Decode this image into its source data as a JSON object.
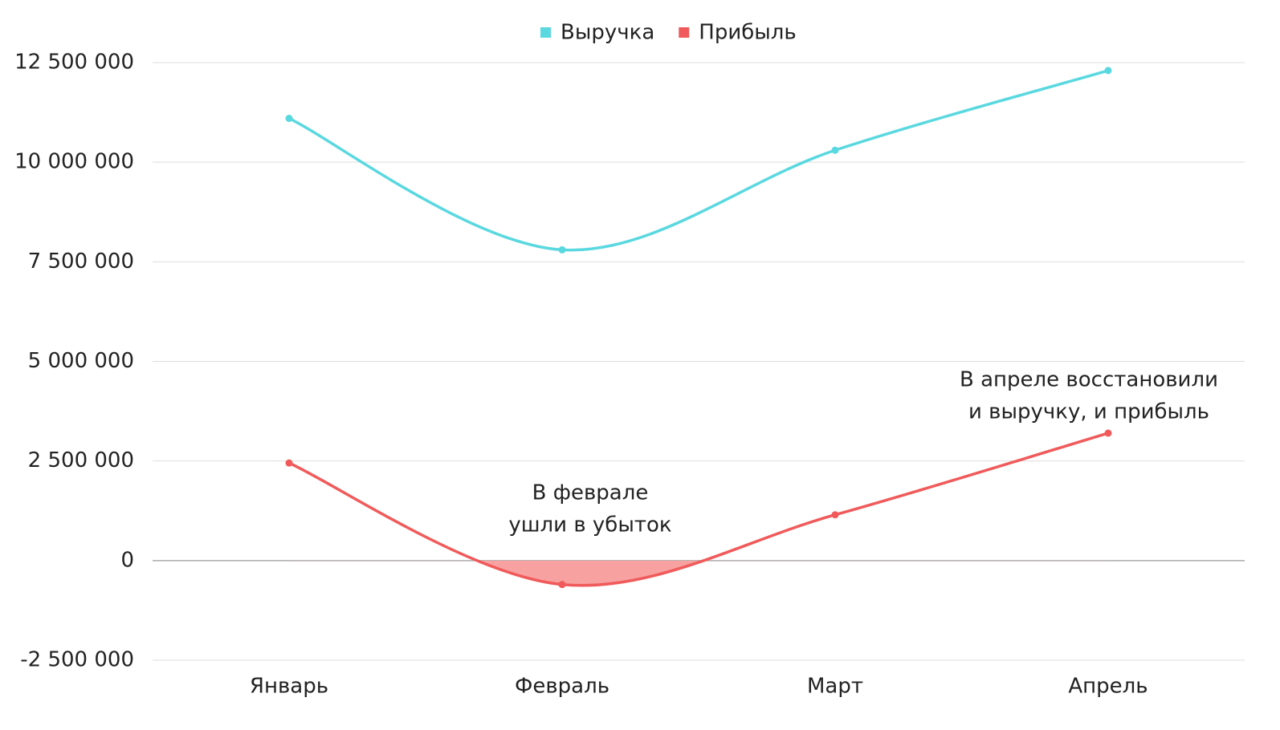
{
  "chart_data": {
    "type": "line",
    "categories": [
      "Январь",
      "Февраль",
      "Март",
      "Апрель"
    ],
    "series": [
      {
        "name": "Выручка",
        "color": "#5ad8e0",
        "values": [
          11100000,
          7800000,
          10300000,
          12300000
        ]
      },
      {
        "name": "Прибыль",
        "color": "#f05a5a",
        "values": [
          2450000,
          -600000,
          1150000,
          3200000
        ]
      }
    ],
    "ylim": [
      -2500000,
      12500000
    ],
    "yticks": [
      {
        "value": -2500000,
        "label": "-2 500 000"
      },
      0,
      {
        "value": 2500000,
        "label": "2 500 000"
      },
      {
        "value": 5000000,
        "label": "5 000 000"
      },
      {
        "value": 7500000,
        "label": "7 500 000"
      },
      {
        "value": 10000000,
        "label": "10 000 000"
      },
      {
        "value": 12500000,
        "label": "12 500 000"
      }
    ],
    "grid": true,
    "legend": "top",
    "negative_fill": "#f7a1a1",
    "annotations": [
      {
        "lines": [
          "В феврале",
          "ушли в убыток"
        ]
      },
      {
        "lines": [
          "В апреле восстановили",
          "и выручку, и прибыль"
        ]
      }
    ]
  }
}
